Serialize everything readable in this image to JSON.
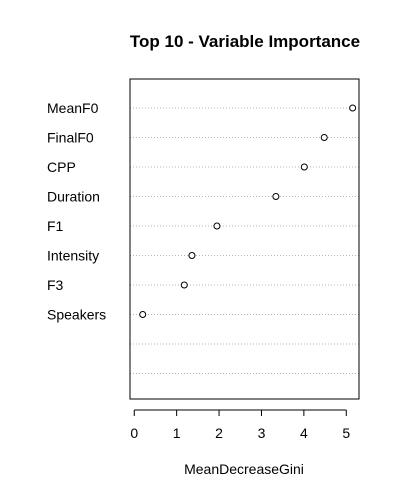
{
  "chart_data": {
    "type": "dotchart",
    "title": "Top 10 - Variable Importance",
    "xlabel": "MeanDecreaseGini",
    "ylabel": "",
    "xlim": [
      -0.1,
      5.3
    ],
    "x_ticks": [
      0,
      1,
      2,
      3,
      4,
      5
    ],
    "grid": "dotted horizontal lines per row",
    "rows": [
      {
        "label": "MeanF0",
        "value": 5.15
      },
      {
        "label": "FinalF0",
        "value": 4.48
      },
      {
        "label": "CPP",
        "value": 4.01
      },
      {
        "label": "Duration",
        "value": 3.34
      },
      {
        "label": "F1",
        "value": 1.95
      },
      {
        "label": "Intensity",
        "value": 1.36
      },
      {
        "label": "F3",
        "value": 1.18
      },
      {
        "label": "Speakers",
        "value": 0.2
      },
      {
        "label": "",
        "value": null
      },
      {
        "label": "",
        "value": null
      }
    ]
  }
}
